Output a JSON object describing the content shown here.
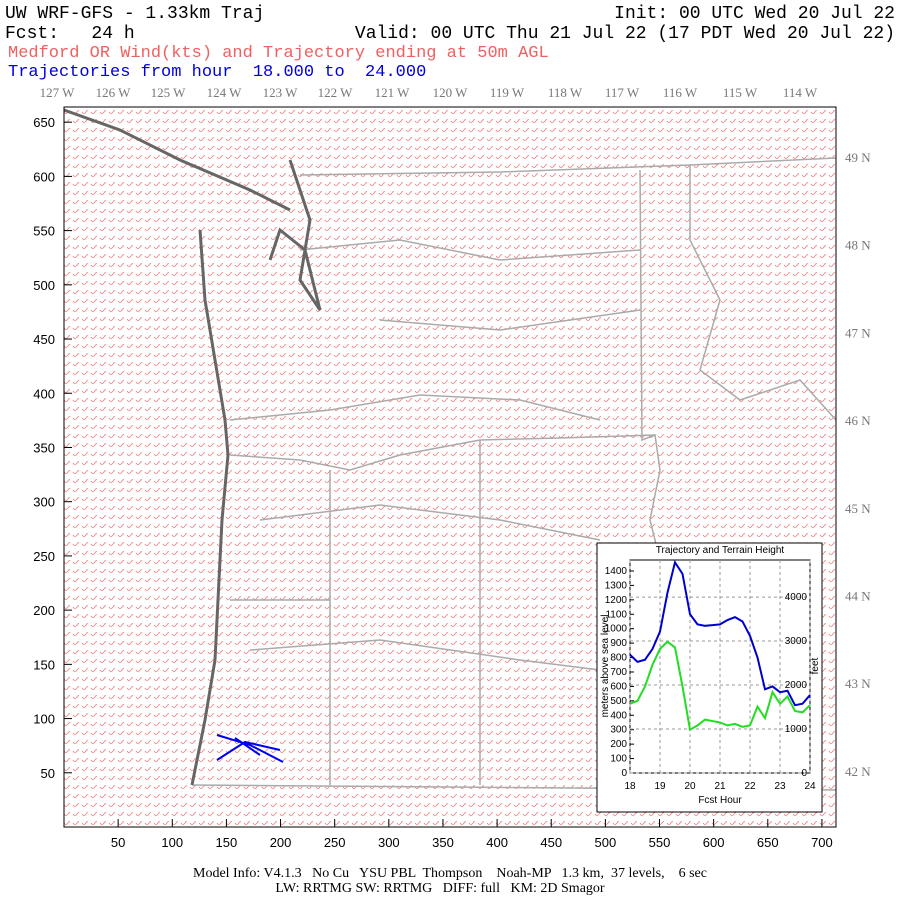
{
  "header": {
    "title": "UW WRF-GFS - 1.33km Traj",
    "init": "Init: 00 UTC Wed 20 Jul 22",
    "fcst": "Fcst:   24 h",
    "valid": "Valid: 00 UTC Thu 21 Jul 22 (17 PDT Wed 20 Jul 22)",
    "subtitle": "Medford OR Wind(kts) and Trajectory ending at 50m AGL",
    "trajectories": "Trajectories from hour  18.000 to  24.000"
  },
  "map": {
    "xlim": [
      0,
      713
    ],
    "ylim": [
      0,
      664
    ],
    "xticks": [
      50,
      100,
      150,
      200,
      250,
      300,
      350,
      400,
      450,
      500,
      550,
      600,
      650,
      700
    ],
    "yticks": [
      50,
      100,
      150,
      200,
      250,
      300,
      350,
      400,
      450,
      500,
      550,
      600,
      650
    ],
    "lon_labels": [
      "127 W",
      "126 W",
      "125 W",
      "124 W",
      "123 W",
      "122 W",
      "121 W",
      "120 W",
      "119 W",
      "118 W",
      "117 W",
      "116 W",
      "115 W",
      "114 W"
    ],
    "lat_labels": [
      "49 N",
      "48 N",
      "47 N",
      "46 N",
      "45 N",
      "44 N",
      "43 N",
      "42 N"
    ]
  },
  "inset": {
    "type": "line",
    "title": "Trajectory and Terrain Height",
    "xlabel": "Fcst Hour",
    "ylabel": "meters above sea level",
    "y2label": "feet",
    "x": [
      18,
      18.25,
      18.5,
      18.75,
      19,
      19.25,
      19.5,
      19.75,
      20,
      20.25,
      20.5,
      20.75,
      21,
      21.25,
      21.5,
      21.75,
      22,
      22.25,
      22.5,
      22.75,
      23,
      23.25,
      23.5,
      23.75,
      24
    ],
    "series": [
      {
        "color": "#0000cc",
        "values": [
          820,
          770,
          785,
          860,
          980,
          1250,
          1460,
          1380,
          1100,
          1030,
          1020,
          1025,
          1030,
          1060,
          1080,
          1050,
          950,
          800,
          580,
          600,
          560,
          570,
          470,
          480,
          540
        ]
      },
      {
        "color": "#22dd22",
        "values": [
          480,
          500,
          600,
          750,
          860,
          910,
          870,
          600,
          300,
          330,
          370,
          360,
          350,
          330,
          340,
          320,
          330,
          460,
          380,
          560,
          480,
          530,
          430,
          420,
          470
        ]
      }
    ],
    "xlim": [
      18,
      24
    ],
    "ylim": [
      0,
      1476
    ],
    "xticks": [
      18,
      19,
      20,
      21,
      22,
      23,
      24
    ],
    "yticks": [
      0,
      100,
      200,
      300,
      400,
      500,
      600,
      700,
      800,
      900,
      1000,
      1100,
      1200,
      1300,
      1400
    ],
    "y2lim": [
      0,
      4843
    ],
    "y2ticks": [
      0,
      1000,
      2000,
      3000,
      4000
    ]
  },
  "footer": [
    "Model Info: V4.1.3   No Cu   YSU PBL  Thompson    Noah-MP   1.3 km,  37 levels,    6 sec",
    "LW: RRTMG SW: RRTMG   DIFF: full   KM: 2D Smagor"
  ]
}
